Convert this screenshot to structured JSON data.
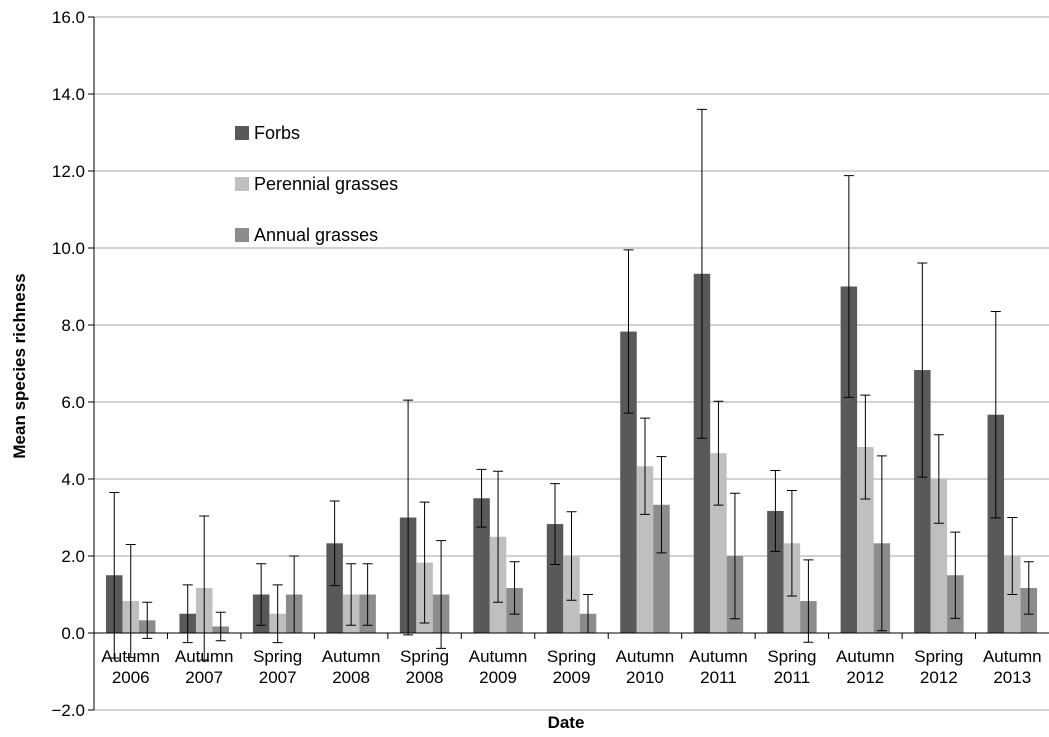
{
  "chart_data": {
    "type": "bar",
    "xlabel": "Date",
    "ylabel": "Mean species richness",
    "ylim": [
      -2.0,
      16.0
    ],
    "y_ticks": [
      "−2.0",
      "0.0",
      "2.0",
      "4.0",
      "6.0",
      "8.0",
      "10.0",
      "12.0",
      "14.0",
      "16.0"
    ],
    "grid": true,
    "legend": "upper-left-inside",
    "categories": [
      [
        "Autumn",
        "2006"
      ],
      [
        "Autumn",
        "2007"
      ],
      [
        "Spring",
        "2007"
      ],
      [
        "Autumn",
        "2008"
      ],
      [
        "Spring",
        "2008"
      ],
      [
        "Autumn",
        "2009"
      ],
      [
        "Spring",
        "2009"
      ],
      [
        "Autumn",
        "2010"
      ],
      [
        "Autumn",
        "2011"
      ],
      [
        "Spring",
        "2011"
      ],
      [
        "Autumn",
        "2012"
      ],
      [
        "Spring",
        "2012"
      ],
      [
        "Autumn",
        "2013"
      ]
    ],
    "series": [
      {
        "name": "Forbs",
        "color": "#595959",
        "values": [
          1.5,
          0.5,
          1.0,
          2.33,
          3.0,
          3.5,
          2.83,
          7.83,
          9.33,
          3.17,
          9.0,
          6.83,
          5.67
        ],
        "errors": [
          2.15,
          0.75,
          0.8,
          1.1,
          3.05,
          0.75,
          1.05,
          2.12,
          4.27,
          1.05,
          2.88,
          2.78,
          2.68
        ]
      },
      {
        "name": "Perennial grasses",
        "color": "#bfbfbf",
        "values": [
          0.83,
          1.17,
          0.5,
          1.0,
          1.83,
          2.5,
          2.0,
          4.33,
          4.67,
          2.33,
          4.83,
          4.0,
          2.0
        ],
        "errors": [
          1.47,
          1.87,
          0.75,
          0.8,
          1.57,
          1.7,
          1.15,
          1.25,
          1.35,
          1.37,
          1.35,
          1.15,
          1.0
        ]
      },
      {
        "name": "Annual grasses",
        "color": "#8c8c8c",
        "values": [
          0.33,
          0.17,
          1.0,
          1.0,
          1.0,
          1.17,
          0.5,
          3.33,
          2.0,
          0.83,
          2.33,
          1.5,
          1.17
        ],
        "errors": [
          0.47,
          0.37,
          1.0,
          0.8,
          1.4,
          0.68,
          0.5,
          1.25,
          1.63,
          1.07,
          2.27,
          1.12,
          0.68
        ]
      }
    ]
  }
}
